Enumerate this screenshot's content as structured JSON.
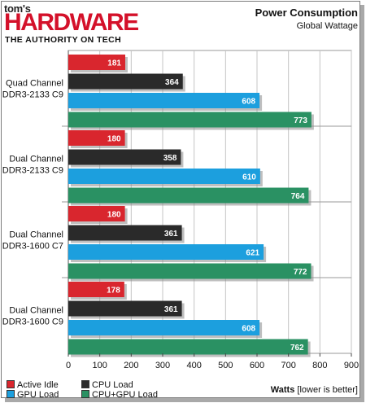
{
  "header": {
    "logo_toms": "tom's",
    "logo_word": "HARDWARE",
    "logo_tagline": "THE AUTHORITY ON TECH"
  },
  "chart_data": {
    "type": "bar",
    "orientation": "horizontal",
    "title": "Power Consumption",
    "subtitle": "Global Wattage",
    "xlabel": "Watts",
    "xlabel_note": "[lower is better]",
    "xlim": [
      0,
      900
    ],
    "xticks": [
      0,
      100,
      200,
      300,
      400,
      500,
      600,
      700,
      800,
      900
    ],
    "grid": "vertical",
    "legend_position": "bottom-left",
    "categories": [
      [
        "Quad Channel",
        "DDR3-2133 C9"
      ],
      [
        "Dual Channel",
        "DDR3-2133 C9"
      ],
      [
        "Dual Channel",
        "DDR3-1600 C7"
      ],
      [
        "Dual Channel",
        "DDR3-1600 C9"
      ]
    ],
    "series": [
      {
        "name": "Active Idle",
        "color": "#d9262e",
        "values": [
          181,
          180,
          180,
          178
        ]
      },
      {
        "name": "CPU Load",
        "color": "#2a2a2a",
        "values": [
          364,
          358,
          361,
          361
        ]
      },
      {
        "name": "GPU Load",
        "color": "#1c9fde",
        "values": [
          608,
          610,
          621,
          608
        ]
      },
      {
        "name": "CPU+GPU Load",
        "color": "#2a9163",
        "values": [
          773,
          764,
          772,
          762
        ]
      }
    ]
  }
}
